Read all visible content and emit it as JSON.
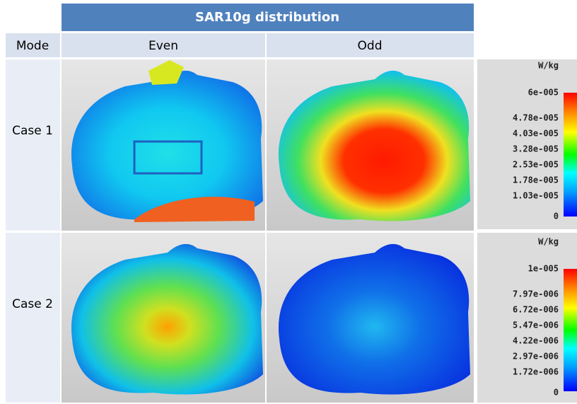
{
  "header": {
    "title": "SAR10g distribution"
  },
  "table": {
    "columns": [
      "Mode",
      "Even",
      "Odd"
    ],
    "rows": [
      {
        "label": "Case 1",
        "colorbar": {
          "unit": "W/kg",
          "labels": [
            "6e-005",
            "4.78e-005",
            "4.03e-005",
            "3.28e-005",
            "2.53e-005",
            "1.78e-005",
            "1.03e-005",
            "0"
          ]
        }
      },
      {
        "label": "Case 2",
        "colorbar": {
          "unit": "W/kg",
          "labels": [
            "1e-005",
            "7.97e-006",
            "6.72e-006",
            "5.47e-006",
            "4.22e-006",
            "2.97e-006",
            "1.72e-006",
            "0"
          ]
        }
      }
    ]
  }
}
